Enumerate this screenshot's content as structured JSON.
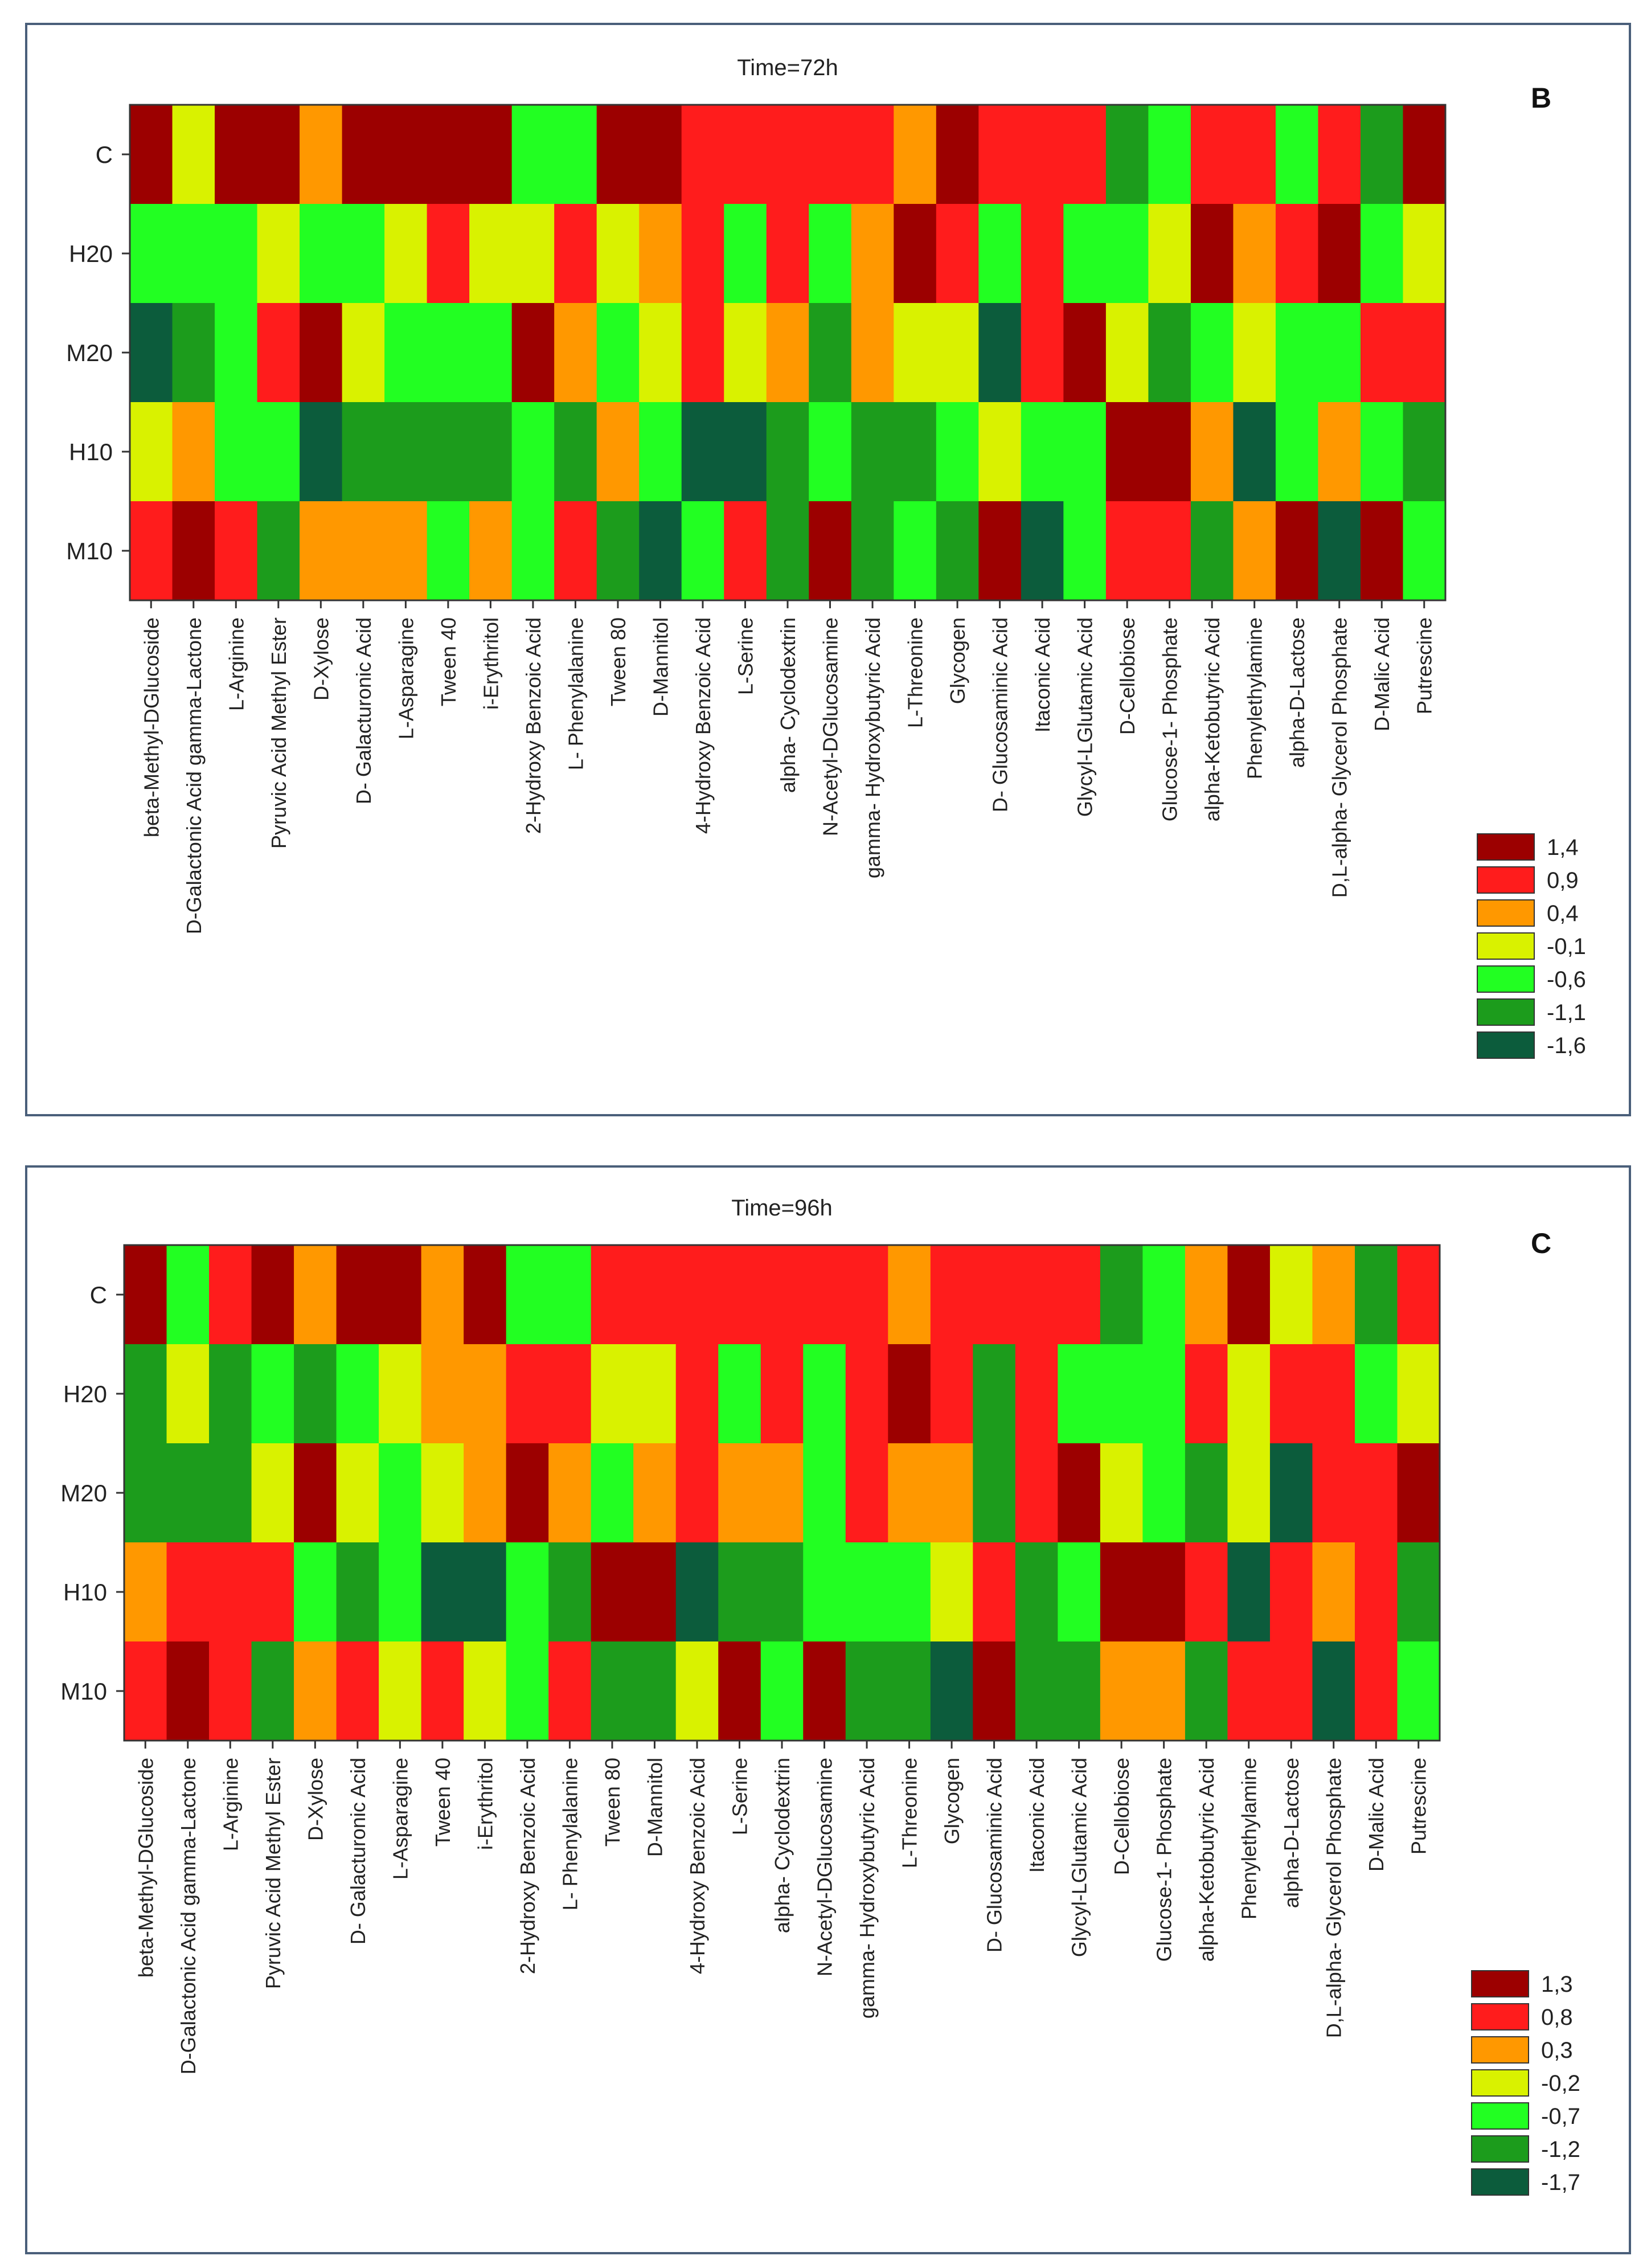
{
  "chart_data": [
    {
      "type": "heatmap",
      "panel_label": "B",
      "title": "Time=72h",
      "rows": [
        "C",
        "H20",
        "M20",
        "H10",
        "M10"
      ],
      "columns": [
        "beta-Methyl-DGlucoside",
        "D-Galactonic Acid gamma-Lactone",
        "L-Arginine",
        "Pyruvic Acid Methyl Ester",
        "D-Xylose",
        "D- Galacturonic Acid",
        "L-Asparagine",
        "Tween 40",
        "i-Erythritol",
        "2-Hydroxy Benzoic Acid",
        "L- Phenylalanine",
        "Tween 80",
        "D-Mannitol",
        "4-Hydroxy Benzoic Acid",
        "L-Serine",
        "alpha- Cyclodextrin",
        "N-Acetyl-DGlucosamine",
        "gamma- Hydroxybutyric Acid",
        "L-Threonine",
        "Glycogen",
        "D- Glucosaminic Acid",
        "Itaconic Acid",
        "Glycyl-LGlutamic Acid",
        "D-Cellobiose",
        "Glucose-1- Phosphate",
        "alpha-Ketobutyric Acid",
        "Phenylethylamine",
        "alpha-D-Lactose",
        "D,L-alpha- Glycerol Phosphate",
        "D-Malic Acid",
        "Putrescine"
      ],
      "values": [
        [
          1.4,
          -0.1,
          1.4,
          1.4,
          0.4,
          1.4,
          1.4,
          1.4,
          1.4,
          -0.6,
          -0.6,
          1.4,
          1.4,
          0.9,
          0.9,
          0.9,
          0.9,
          0.9,
          0.4,
          1.4,
          0.9,
          0.9,
          0.9,
          -1.1,
          -0.6,
          0.9,
          0.9,
          -0.6,
          0.9,
          -1.1,
          1.4
        ],
        [
          -0.6,
          -0.6,
          -0.6,
          -0.1,
          -0.6,
          -0.6,
          -0.1,
          0.9,
          -0.1,
          -0.1,
          0.9,
          -0.1,
          0.4,
          0.9,
          -0.6,
          0.9,
          -0.6,
          0.4,
          1.4,
          0.9,
          -0.6,
          0.9,
          -0.6,
          -0.6,
          -0.1,
          1.4,
          0.4,
          0.9,
          1.4,
          -0.6,
          -0.1
        ],
        [
          -1.6,
          -1.1,
          -0.6,
          0.9,
          1.4,
          -0.1,
          -0.6,
          -0.6,
          -0.6,
          1.4,
          0.4,
          -0.6,
          -0.1,
          0.9,
          -0.1,
          0.4,
          -1.1,
          0.4,
          -0.1,
          -0.1,
          -1.6,
          0.9,
          1.4,
          -0.1,
          -1.1,
          -0.6,
          -0.1,
          -0.6,
          -0.6,
          0.9,
          0.9
        ],
        [
          -0.1,
          0.4,
          -0.6,
          -0.6,
          -1.6,
          -1.1,
          -1.1,
          -1.1,
          -1.1,
          -0.6,
          -1.1,
          0.4,
          -0.6,
          -1.6,
          -1.6,
          -1.1,
          -0.6,
          -1.1,
          -1.1,
          -0.6,
          -0.1,
          -0.6,
          -0.6,
          1.4,
          1.4,
          0.4,
          -1.6,
          -0.6,
          0.4,
          -0.6,
          -1.1
        ],
        [
          0.9,
          1.4,
          0.9,
          -1.1,
          0.4,
          0.4,
          0.4,
          -0.6,
          0.4,
          -0.6,
          0.9,
          -1.1,
          -1.6,
          -0.6,
          0.9,
          -1.1,
          1.4,
          -1.1,
          -0.6,
          -1.1,
          1.4,
          -1.6,
          -0.6,
          0.9,
          0.9,
          -1.1,
          0.4,
          1.4,
          -1.6,
          1.4,
          -0.6
        ]
      ],
      "legend": [
        "1,4",
        "0,9",
        "0,4",
        "-0,1",
        "-0,6",
        "-1,1",
        "-1,6"
      ],
      "legend_values": [
        1.4,
        0.9,
        0.4,
        -0.1,
        -0.6,
        -1.1,
        -1.6
      ],
      "legend_colors": [
        "#9c0000",
        "#ff1c1c",
        "#ff9800",
        "#d9f200",
        "#22ff22",
        "#1c9c1c",
        "#0c5c3c"
      ]
    },
    {
      "type": "heatmap",
      "panel_label": "C",
      "title": "Time=96h",
      "rows": [
        "C",
        "H20",
        "M20",
        "H10",
        "M10"
      ],
      "columns": [
        "beta-Methyl-DGlucoside",
        "D-Galactonic Acid gamma-Lactone",
        "L-Arginine",
        "Pyruvic Acid Methyl Ester",
        "D-Xylose",
        "D- Galacturonic Acid",
        "L-Asparagine",
        "Tween 40",
        "i-Erythritol",
        "2-Hydroxy Benzoic Acid",
        "L- Phenylalanine",
        "Tween 80",
        "D-Mannitol",
        "4-Hydroxy Benzoic Acid",
        "L-Serine",
        "alpha- Cyclodextrin",
        "N-Acetyl-DGlucosamine",
        "gamma- Hydroxybutyric Acid",
        "L-Threonine",
        "Glycogen",
        "D- Glucosaminic Acid",
        "Itaconic Acid",
        "Glycyl-LGlutamic Acid",
        "D-Cellobiose",
        "Glucose-1- Phosphate",
        "alpha-Ketobutyric Acid",
        "Phenylethylamine",
        "alpha-D-Lactose",
        "D,L-alpha- Glycerol Phosphate",
        "D-Malic Acid",
        "Putrescine"
      ],
      "values": [
        [
          1.3,
          -0.7,
          0.8,
          1.3,
          0.3,
          1.3,
          1.3,
          0.3,
          1.3,
          -0.7,
          -0.7,
          0.8,
          0.8,
          0.8,
          0.8,
          0.8,
          0.8,
          0.8,
          0.3,
          0.8,
          0.8,
          0.8,
          0.8,
          -1.2,
          -0.7,
          0.3,
          1.3,
          -0.2,
          0.3,
          -1.2,
          0.8
        ],
        [
          -1.2,
          -0.2,
          -1.2,
          -0.7,
          -1.2,
          -0.7,
          -0.2,
          0.3,
          0.3,
          0.8,
          0.8,
          -0.2,
          -0.2,
          0.8,
          -0.7,
          0.8,
          -0.7,
          0.8,
          1.3,
          0.8,
          -1.2,
          0.8,
          -0.7,
          -0.7,
          -0.7,
          0.8,
          -0.2,
          0.8,
          0.8,
          -0.7,
          -0.2
        ],
        [
          -1.2,
          -1.2,
          -1.2,
          -0.2,
          1.3,
          -0.2,
          -0.7,
          -0.2,
          0.3,
          1.3,
          0.3,
          -0.7,
          0.3,
          0.8,
          0.3,
          0.3,
          -0.7,
          0.8,
          0.3,
          0.3,
          -1.2,
          0.8,
          1.3,
          -0.2,
          -0.7,
          -1.2,
          -0.2,
          -1.7,
          0.8,
          0.8,
          1.3
        ],
        [
          0.3,
          0.8,
          0.8,
          0.8,
          -0.7,
          -1.2,
          -0.7,
          -1.7,
          -1.7,
          -0.7,
          -1.2,
          1.3,
          1.3,
          -1.7,
          -1.2,
          -1.2,
          -0.7,
          -0.7,
          -0.7,
          -0.2,
          0.8,
          -1.2,
          -0.7,
          1.3,
          1.3,
          0.8,
          -1.7,
          0.8,
          0.3,
          0.8,
          -1.2
        ],
        [
          0.8,
          1.3,
          0.8,
          -1.2,
          0.3,
          0.8,
          -0.2,
          0.8,
          -0.2,
          -0.7,
          0.8,
          -1.2,
          -1.2,
          -0.2,
          1.3,
          -0.7,
          1.3,
          -1.2,
          -1.2,
          -1.7,
          1.3,
          -1.2,
          -1.2,
          0.3,
          0.3,
          -1.2,
          0.8,
          0.8,
          -1.7,
          0.8,
          -0.7
        ]
      ],
      "legend": [
        "1,3",
        "0,8",
        "0,3",
        "-0,2",
        "-0,7",
        "-1,2",
        "-1,7"
      ],
      "legend_values": [
        1.3,
        0.8,
        0.3,
        -0.2,
        -0.7,
        -1.2,
        -1.7
      ],
      "legend_colors": [
        "#9c0000",
        "#ff1c1c",
        "#ff9800",
        "#d9f200",
        "#22ff22",
        "#1c9c1c",
        "#0c5c3c"
      ]
    }
  ]
}
